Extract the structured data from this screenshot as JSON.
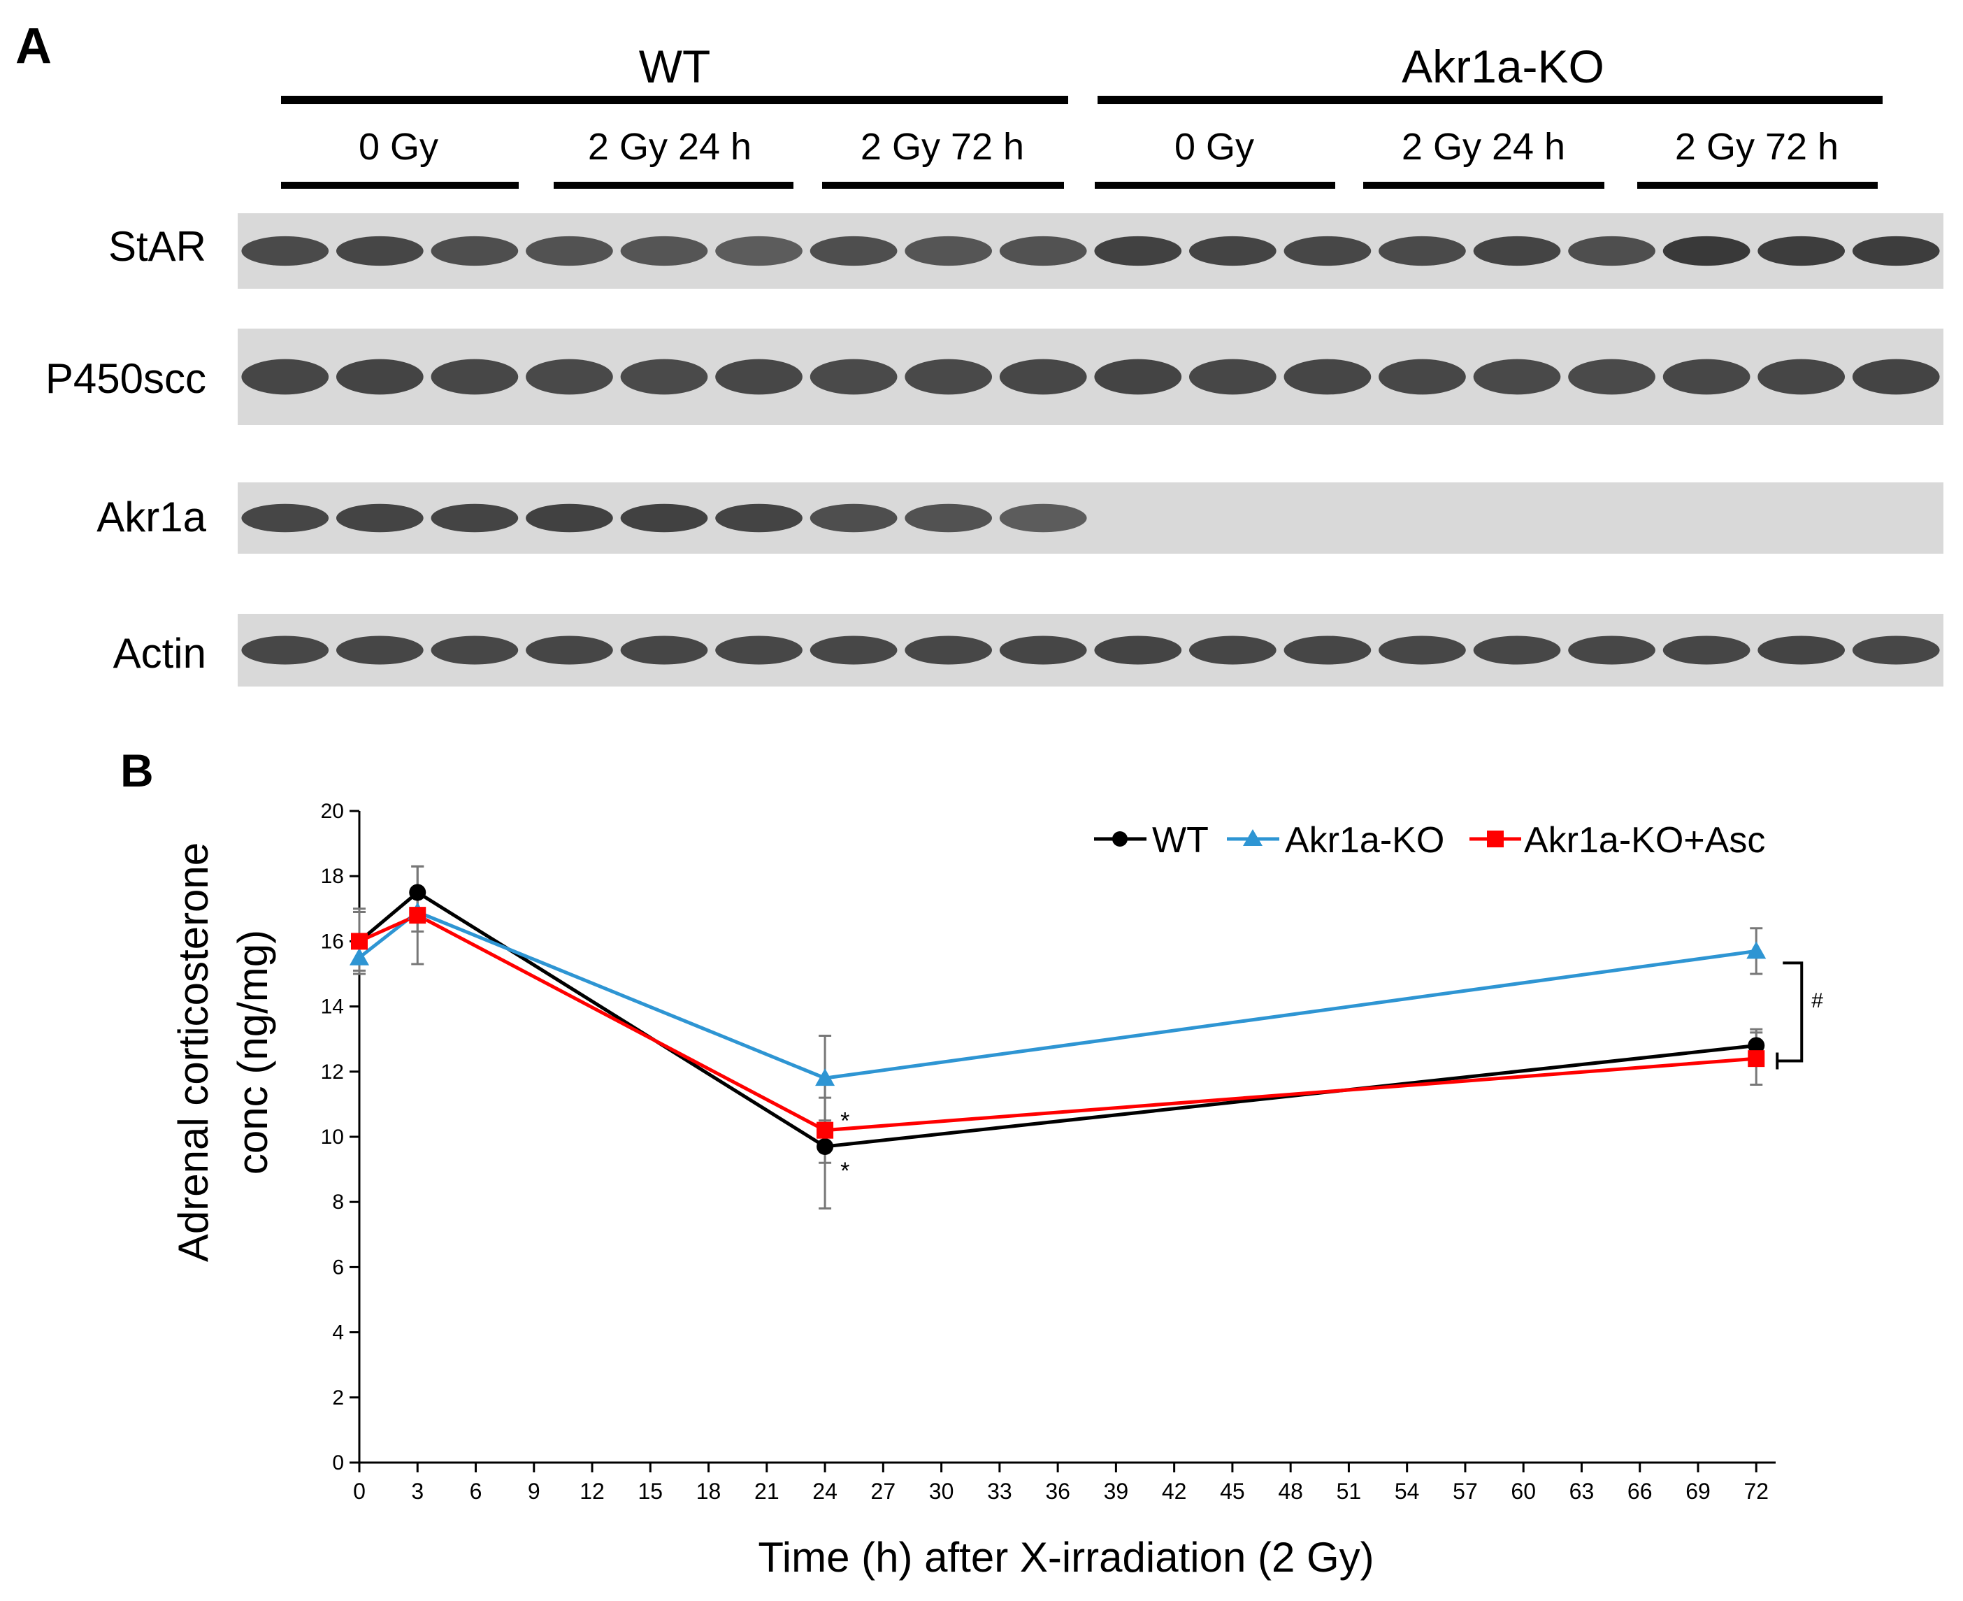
{
  "panel_a": {
    "label": "A",
    "groups": [
      "WT",
      "Akr1a-KO"
    ],
    "conditions": [
      "0 Gy",
      "2 Gy 24 h",
      "2 Gy 72 h",
      "0 Gy",
      "2 Gy 24 h",
      "2 Gy 72 h"
    ],
    "blots": [
      {
        "name": "StAR",
        "lanes_with_band": 18,
        "relative_band_intensity": [
          0.82,
          0.85,
          0.8,
          0.78,
          0.76,
          0.72,
          0.8,
          0.76,
          0.78,
          0.88,
          0.86,
          0.84,
          0.82,
          0.86,
          0.8,
          0.92,
          0.9,
          0.9
        ]
      },
      {
        "name": "P450scc",
        "lanes_with_band": 18,
        "relative_band_intensity": [
          0.85,
          0.86,
          0.84,
          0.83,
          0.82,
          0.84,
          0.82,
          0.83,
          0.84,
          0.86,
          0.84,
          0.85,
          0.84,
          0.83,
          0.82,
          0.84,
          0.85,
          0.86
        ]
      },
      {
        "name": "Akr1a",
        "lanes_with_band": 9,
        "relative_band_intensity": [
          0.85,
          0.86,
          0.86,
          0.87,
          0.87,
          0.86,
          0.8,
          0.78,
          0.72,
          0,
          0,
          0,
          0,
          0,
          0,
          0,
          0,
          0
        ]
      },
      {
        "name": "Actin",
        "lanes_with_band": 18,
        "relative_band_intensity": [
          0.84,
          0.85,
          0.84,
          0.85,
          0.85,
          0.84,
          0.84,
          0.84,
          0.85,
          0.86,
          0.85,
          0.85,
          0.84,
          0.84,
          0.84,
          0.85,
          0.86,
          0.84
        ]
      }
    ],
    "colors": {
      "blot_background": "#d9d9d9",
      "band": "#2b2b2b"
    }
  },
  "panel_b": {
    "label": "B",
    "chart_data": {
      "type": "line",
      "title": "",
      "xlabel": "Time (h) after X-irradiation (2 Gy)",
      "ylabel": "Adrenal corticosterone conc (ng/mg)",
      "ylabel_lines": [
        "Adrenal corticosterone",
        "conc  (ng/mg)"
      ],
      "xlim": [
        0,
        73
      ],
      "ylim": [
        0,
        20
      ],
      "x_ticks": [
        0,
        3,
        6,
        9,
        12,
        15,
        18,
        21,
        24,
        27,
        30,
        33,
        36,
        39,
        42,
        45,
        48,
        51,
        54,
        57,
        60,
        63,
        66,
        69,
        72
      ],
      "y_ticks": [
        0,
        2,
        4,
        6,
        8,
        10,
        12,
        14,
        16,
        18,
        20
      ],
      "grid": false,
      "legend_position": "top-right",
      "series": [
        {
          "name": "WT",
          "color": "#000000",
          "marker": "circle",
          "x": [
            0,
            3,
            24,
            72
          ],
          "y": [
            16.0,
            17.5,
            9.7,
            12.8
          ],
          "err": [
            1.0,
            0.8,
            1.9,
            0.5
          ]
        },
        {
          "name": "Akr1a-KO",
          "color": "#2e95d3",
          "marker": "triangle",
          "x": [
            0,
            3,
            24,
            72
          ],
          "y": [
            15.5,
            16.9,
            11.8,
            15.7
          ],
          "err": [
            0.5,
            0.6,
            1.3,
            0.7
          ]
        },
        {
          "name": "Akr1a-KO+Asc",
          "color": "#ff0000",
          "marker": "square",
          "x": [
            0,
            3,
            24,
            72
          ],
          "y": [
            16.0,
            16.8,
            10.2,
            12.4
          ],
          "err": [
            0.9,
            1.5,
            1.0,
            0.8
          ]
        }
      ],
      "annotations": [
        {
          "text": "*",
          "x": 24,
          "y": 10.2,
          "series": "Akr1a-KO+Asc"
        },
        {
          "text": "*",
          "x": 24,
          "y": 9.7,
          "series": "WT"
        },
        {
          "text": "#",
          "between": [
            "Akr1a-KO",
            "WT"
          ],
          "x": 72
        }
      ]
    }
  }
}
